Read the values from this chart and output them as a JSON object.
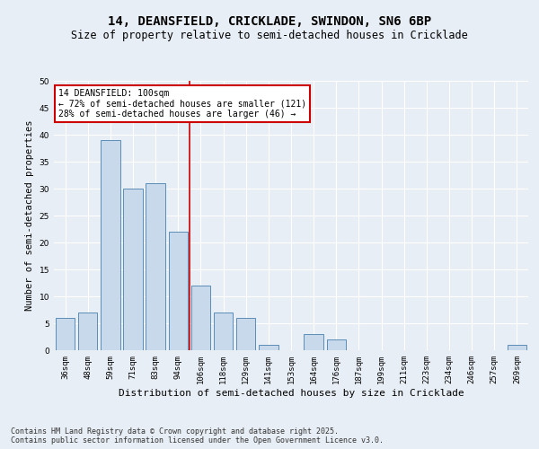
{
  "title": "14, DEANSFIELD, CRICKLADE, SWINDON, SN6 6BP",
  "subtitle": "Size of property relative to semi-detached houses in Cricklade",
  "xlabel": "Distribution of semi-detached houses by size in Cricklade",
  "ylabel": "Number of semi-detached properties",
  "categories": [
    "36sqm",
    "48sqm",
    "59sqm",
    "71sqm",
    "83sqm",
    "94sqm",
    "106sqm",
    "118sqm",
    "129sqm",
    "141sqm",
    "153sqm",
    "164sqm",
    "176sqm",
    "187sqm",
    "199sqm",
    "211sqm",
    "223sqm",
    "234sqm",
    "246sqm",
    "257sqm",
    "269sqm"
  ],
  "values": [
    6,
    7,
    39,
    30,
    31,
    22,
    12,
    7,
    6,
    1,
    0,
    3,
    2,
    0,
    0,
    0,
    0,
    0,
    0,
    0,
    1
  ],
  "bar_color": "#c9d9ec",
  "bar_edge_color": "#5b8db8",
  "bg_color": "#e8eef5",
  "grid_color": "#ffffff",
  "annotation_text": "14 DEANSFIELD: 100sqm\n← 72% of semi-detached houses are smaller (121)\n28% of semi-detached houses are larger (46) →",
  "annotation_box_color": "#ffffff",
  "annotation_box_edge": "#cc0000",
  "vline_x": 5.5,
  "vline_color": "#cc0000",
  "ylim": [
    0,
    50
  ],
  "yticks": [
    0,
    5,
    10,
    15,
    20,
    25,
    30,
    35,
    40,
    45,
    50
  ],
  "footnote": "Contains HM Land Registry data © Crown copyright and database right 2025.\nContains public sector information licensed under the Open Government Licence v3.0.",
  "title_fontsize": 10,
  "subtitle_fontsize": 8.5,
  "xlabel_fontsize": 8,
  "ylabel_fontsize": 7.5,
  "tick_fontsize": 6.5,
  "annot_fontsize": 7,
  "footnote_fontsize": 6
}
